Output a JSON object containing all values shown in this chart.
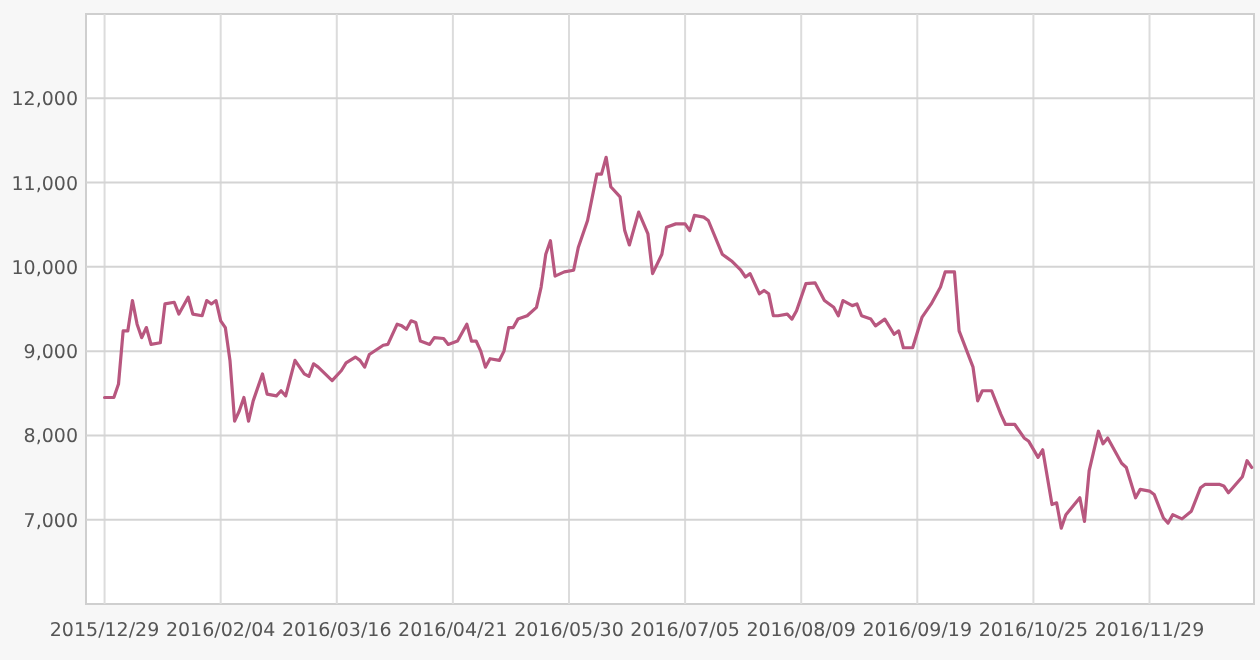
{
  "chart_data": {
    "type": "line",
    "color": "#b8577f",
    "grid": true,
    "ylim": [
      6000,
      13000
    ],
    "yticks": [
      {
        "value": 7000,
        "label": "7,000"
      },
      {
        "value": 8000,
        "label": "8,000"
      },
      {
        "value": 9000,
        "label": "9,000"
      },
      {
        "value": 10000,
        "label": "10,000"
      },
      {
        "value": 11000,
        "label": "11,000"
      },
      {
        "value": 12000,
        "label": "12,000"
      }
    ],
    "categories": [
      "2015/12/29",
      null,
      null,
      null,
      null,
      null,
      null,
      null,
      null,
      null,
      null,
      null,
      null,
      null,
      null,
      null,
      null,
      null,
      null,
      null,
      null,
      null,
      null,
      null,
      null,
      "2016/02/04",
      null,
      null,
      null,
      null,
      null,
      null,
      null,
      null,
      null,
      null,
      null,
      null,
      null,
      null,
      null,
      null,
      null,
      null,
      null,
      null,
      null,
      null,
      null,
      null,
      "2016/03/16",
      null,
      null,
      null,
      null,
      null,
      null,
      null,
      null,
      null,
      null,
      null,
      null,
      null,
      null,
      null,
      null,
      null,
      null,
      null,
      null,
      null,
      null,
      null,
      null,
      "2016/04/21",
      null,
      null,
      null,
      null,
      null,
      null,
      null,
      null,
      null,
      null,
      null,
      null,
      null,
      null,
      null,
      null,
      null,
      null,
      null,
      null,
      null,
      null,
      null,
      null,
      "2016/05/30",
      null,
      null,
      null,
      null,
      null,
      null,
      null,
      null,
      null,
      null,
      null,
      null,
      null,
      null,
      null,
      null,
      null,
      null,
      null,
      null,
      null,
      null,
      null,
      null,
      "2016/07/05",
      null,
      null,
      null,
      null,
      null,
      null,
      null,
      null,
      null,
      null,
      null,
      null,
      null,
      null,
      null,
      null,
      null,
      null,
      null,
      null,
      null,
      null,
      null,
      null,
      "2016/08/09",
      null,
      null,
      null,
      null,
      null,
      null,
      null,
      null,
      null,
      null,
      null,
      null,
      null,
      null,
      null,
      null,
      null,
      null,
      null,
      null,
      null,
      null,
      null,
      null,
      "2016/09/19",
      null,
      null,
      null,
      null,
      null,
      null,
      null,
      null,
      null,
      null,
      null,
      null,
      null,
      null,
      null,
      null,
      null,
      null,
      null,
      null,
      null,
      null,
      null,
      null,
      "2016/10/25",
      null,
      null,
      null,
      null,
      null,
      null,
      null,
      null,
      null,
      null,
      null,
      null,
      null,
      null,
      null,
      null,
      null,
      null,
      null,
      null,
      null,
      null,
      null,
      null,
      "2016/11/29",
      null,
      null,
      null,
      null,
      null,
      null,
      null,
      null,
      null,
      null,
      null,
      null,
      null,
      null,
      null,
      null,
      null,
      null,
      null,
      null,
      null,
      null
    ],
    "values": [
      8450,
      null,
      8450,
      8610,
      9240,
      9240,
      9600,
      9320,
      9160,
      9280,
      9080,
      null,
      9100,
      9560,
      null,
      9580,
      9440,
      null,
      9640,
      9440,
      null,
      9420,
      9600,
      9560,
      9600,
      9360,
      9280,
      8890,
      8170,
      8290,
      8450,
      8170,
      8410,
      null,
      8730,
      8490,
      null,
      8470,
      8530,
      8470,
      null,
      8890,
      null,
      8730,
      8700,
      8850,
      8810,
      null,
      null,
      8650,
      null,
      8770,
      8860,
      null,
      8930,
      8890,
      8810,
      8960,
      null,
      null,
      9070,
      9080,
      null,
      9320,
      9300,
      9260,
      9360,
      9340,
      9120,
      null,
      9080,
      9160,
      null,
      9150,
      9080,
      null,
      9120,
      null,
      9320,
      9120,
      9120,
      9000,
      8810,
      8910,
      null,
      8890,
      9000,
      9280,
      9280,
      9380,
      null,
      9420,
      null,
      9520,
      9760,
      10150,
      10310,
      9890,
      null,
      9940,
      null,
      9960,
      10230,
      null,
      10550,
      null,
      11100,
      11100,
      11300,
      10950,
      null,
      10830,
      10430,
      10260,
      null,
      10650,
      null,
      10390,
      9920,
      null,
      10150,
      10470,
      null,
      10510,
      null,
      10510,
      10430,
      10610,
      null,
      10590,
      10550,
      null,
      null,
      10150,
      10110,
      10070,
      null,
      9960,
      9880,
      9920,
      null,
      9680,
      9720,
      9680,
      9420,
      9420,
      null,
      9440,
      9380,
      9480,
      null,
      9800,
      null,
      9810,
      null,
      9600,
      null,
      9520,
      9420,
      9600,
      null,
      9540,
      9560,
      9420,
      null,
      9380,
      9300,
      null,
      9380,
      null,
      9200,
      9240,
      9040,
      null,
      9040,
      null,
      9400,
      null,
      9560,
      null,
      9760,
      9940,
      null,
      9940,
      9240,
      null,
      null,
      8810,
      8410,
      8530,
      null,
      8530,
      null,
      8250,
      8130,
      null,
      8130,
      null,
      7970,
      7930,
      null,
      7740,
      7830,
      null,
      7180,
      7200,
      6900,
      7060,
      null,
      null,
      7260,
      6980,
      7580,
      null,
      8050,
      7900,
      7970,
      null,
      null,
      7670,
      7620,
      null,
      7260,
      7360,
      null,
      7340,
      7300,
      null,
      7020,
      6960,
      7060,
      null,
      7010,
      null,
      7100,
      null,
      7380,
      7420,
      null,
      null,
      7420,
      7400,
      7320,
      null,
      null,
      7510,
      7700,
      7620
    ]
  }
}
